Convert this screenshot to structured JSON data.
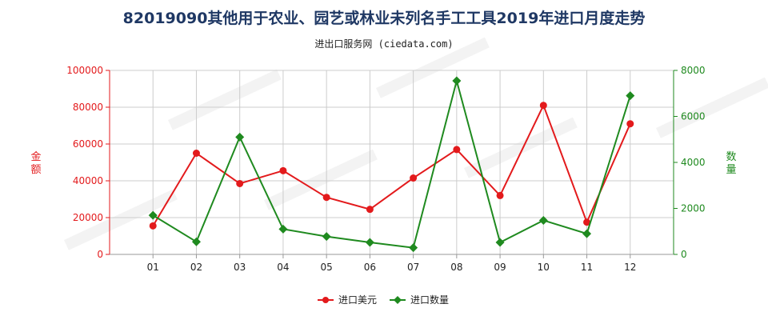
{
  "title": "82019090其他用于农业、园艺或林业未列名手工工具2019年进口月度走势",
  "subtitle": "进出口服务网 (ciedata.com)",
  "colors": {
    "amount": "#e31a1c",
    "quantity": "#1f8a1f",
    "grid": "#cccccc",
    "title": "#1f3864"
  },
  "chart_data": {
    "type": "line",
    "categories": [
      "01",
      "02",
      "03",
      "04",
      "05",
      "06",
      "07",
      "08",
      "09",
      "10",
      "11",
      "12"
    ],
    "series": [
      {
        "name": "进口美元",
        "axis": "left",
        "values": [
          15500,
          55000,
          38500,
          45500,
          31000,
          24500,
          41500,
          57000,
          32000,
          81000,
          17500,
          71000
        ]
      },
      {
        "name": "进口数量",
        "axis": "right",
        "values": [
          1700,
          550,
          5100,
          1100,
          780,
          520,
          290,
          7550,
          520,
          1480,
          900,
          6900
        ]
      }
    ],
    "ylabel_left": "金额",
    "ylabel_right": "数量",
    "ylim_left": [
      0,
      100000
    ],
    "ylim_right": [
      0,
      8000
    ],
    "yticks_left": [
      "0",
      "20000",
      "40000",
      "60000",
      "80000",
      "100000"
    ],
    "yticks_right": [
      "0",
      "2000",
      "4000",
      "6000",
      "8000"
    ],
    "grid": true,
    "legend_position": "bottom-center"
  }
}
